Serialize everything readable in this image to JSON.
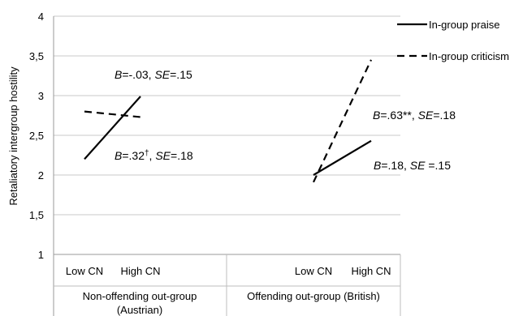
{
  "chart_data": {
    "type": "line",
    "title": "",
    "ylabel": "Retaliatory intergroup hostility",
    "ylim": [
      1,
      4
    ],
    "yticks": [
      "1",
      "1,5",
      "2",
      "2,5",
      "3",
      "3,5",
      "4"
    ],
    "ytick_values": [
      1,
      1.5,
      2,
      2.5,
      3,
      3.5,
      4
    ],
    "grid": true,
    "legend_position": "top-right",
    "groups": [
      {
        "label": "Non-offending out-group (Austrian)",
        "categories": [
          "Low CN",
          "High CN"
        ],
        "series": [
          {
            "name": "In-group praise",
            "style": "solid",
            "values": [
              2.2,
              2.99
            ]
          },
          {
            "name": "In-group criticism",
            "style": "dashed",
            "values": [
              2.8,
              2.73
            ]
          }
        ],
        "annotations": [
          {
            "text": "B=-.03, SE=.15"
          },
          {
            "text": "B=.32†, SE=.18"
          }
        ]
      },
      {
        "label": "Offending out-group (British)",
        "categories": [
          "Low CN",
          "High CN"
        ],
        "series": [
          {
            "name": "In-group praise",
            "style": "solid",
            "values": [
              2.0,
              2.43
            ]
          },
          {
            "name": "In-group criticism",
            "style": "dashed",
            "values": [
              1.91,
              3.45
            ]
          }
        ],
        "annotations": [
          {
            "text": "B=.63**, SE=.18"
          },
          {
            "text": "B=.18, SE =.15"
          }
        ]
      }
    ],
    "legend": [
      {
        "name": "In-group praise",
        "style": "solid"
      },
      {
        "name": "In-group criticism",
        "style": "dashed"
      }
    ]
  }
}
